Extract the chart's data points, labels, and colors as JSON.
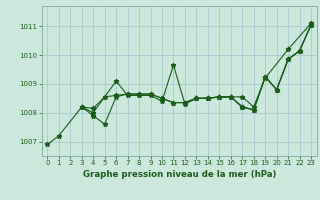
{
  "title": "Graphe pression niveau de la mer (hPa)",
  "background_color": "#cce8dd",
  "grid_color": "#99bbcc",
  "line_color": "#1a5c1a",
  "xlim": [
    -0.5,
    23.5
  ],
  "ylim": [
    1006.5,
    1011.7
  ],
  "yticks": [
    1007,
    1008,
    1009,
    1010,
    1011
  ],
  "xticks": [
    0,
    1,
    2,
    3,
    4,
    5,
    6,
    7,
    8,
    9,
    10,
    11,
    12,
    13,
    14,
    15,
    16,
    17,
    18,
    19,
    20,
    21,
    22,
    23
  ],
  "curve1_x": [
    0,
    1,
    3,
    4,
    6,
    7,
    8,
    9,
    10,
    11,
    12,
    13,
    14,
    15,
    16,
    17,
    18,
    19,
    21,
    23
  ],
  "curve1_y": [
    1006.9,
    1007.2,
    1008.2,
    1008.0,
    1009.1,
    1008.6,
    1008.6,
    1008.6,
    1008.4,
    1009.65,
    1008.3,
    1008.5,
    1008.5,
    1008.55,
    1008.55,
    1008.55,
    1008.2,
    1009.2,
    1010.2,
    1011.1
  ],
  "curve2_x": [
    3,
    4,
    5,
    6,
    7,
    8,
    9,
    10,
    11,
    12,
    13,
    14,
    15,
    16,
    17,
    18,
    19,
    20,
    21,
    22,
    23
  ],
  "curve2_y": [
    1008.2,
    1007.9,
    1007.6,
    1008.55,
    1008.65,
    1008.65,
    1008.65,
    1008.5,
    1008.35,
    1008.35,
    1008.5,
    1008.5,
    1008.55,
    1008.55,
    1008.2,
    1008.1,
    1009.25,
    1008.8,
    1009.85,
    1010.15,
    1011.05
  ],
  "curve3_x": [
    3,
    4,
    5,
    6,
    7,
    8,
    9,
    10,
    11,
    12,
    13,
    14,
    15,
    16,
    17,
    18,
    19,
    20,
    21,
    22,
    23
  ],
  "curve3_y": [
    1008.2,
    1008.15,
    1008.55,
    1008.6,
    1008.65,
    1008.65,
    1008.65,
    1008.5,
    1008.35,
    1008.35,
    1008.5,
    1008.5,
    1008.55,
    1008.55,
    1008.2,
    1008.1,
    1009.25,
    1008.8,
    1009.85,
    1010.15,
    1011.05
  ],
  "curve4_x": [
    12,
    13,
    14,
    15,
    16,
    17,
    18,
    19,
    20,
    21,
    22,
    23
  ],
  "curve4_y": [
    1008.35,
    1008.5,
    1008.5,
    1008.55,
    1008.55,
    1008.2,
    1008.1,
    1009.25,
    1008.8,
    1009.85,
    1010.15,
    1011.05
  ]
}
